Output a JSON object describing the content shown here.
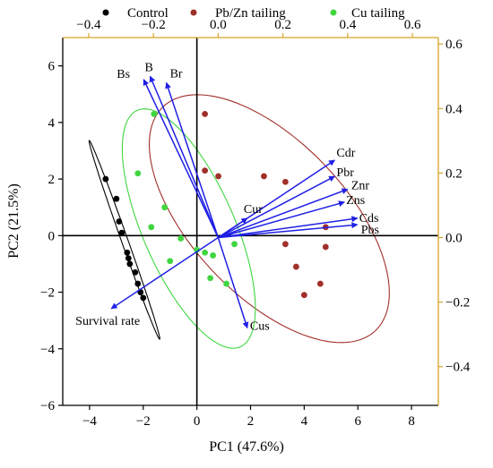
{
  "chart_data": {
    "type": "scatter",
    "subtype": "pca-biplot",
    "title": "",
    "xlabel": "PC1 (47.6%)",
    "ylabel": "PC2 (21.5%)",
    "xlim": [
      -5,
      9
    ],
    "ylim": [
      -6,
      7
    ],
    "x_ticks": [
      -4,
      -2,
      0,
      2,
      4,
      6,
      8
    ],
    "y_ticks": [
      -6,
      -4,
      -2,
      0,
      2,
      4,
      6
    ],
    "loading_xlim": [
      -0.48,
      0.68
    ],
    "loading_ylim": [
      -0.52,
      0.62
    ],
    "top_ticks": [
      -0.4,
      -0.2,
      0.0,
      0.2,
      0.4,
      0.6
    ],
    "right_ticks": [
      -0.4,
      -0.2,
      0.0,
      0.2,
      0.4,
      0.6
    ],
    "top_tick_labels": [
      "−0.4",
      "−0.2",
      "0.0",
      "0.2",
      "0.4",
      "0.6"
    ],
    "right_tick_labels": [
      "−0.4",
      "−0.2",
      "0.0",
      "0.2",
      "0.4",
      "0.6"
    ],
    "x_tick_labels": [
      "−4",
      "−2",
      "0",
      "2",
      "4",
      "6",
      "8"
    ],
    "y_tick_labels": [
      "−6",
      "−4",
      "−2",
      "0",
      "2",
      "4",
      "6"
    ],
    "legend_position": "top",
    "grid": false,
    "axis_color_secondary": "#d9a528",
    "series": [
      {
        "name": "Control",
        "color": "#000000",
        "points": [
          {
            "x": -3.4,
            "y": 2.0
          },
          {
            "x": -3.0,
            "y": 1.3
          },
          {
            "x": -2.9,
            "y": 0.5
          },
          {
            "x": -2.8,
            "y": 0.1
          },
          {
            "x": -2.6,
            "y": -0.6
          },
          {
            "x": -2.55,
            "y": -0.8
          },
          {
            "x": -2.5,
            "y": -1.0
          },
          {
            "x": -2.3,
            "y": -1.3
          },
          {
            "x": -2.2,
            "y": -1.7
          },
          {
            "x": -2.1,
            "y": -2.0
          },
          {
            "x": -2.0,
            "y": -2.2
          }
        ]
      },
      {
        "name": "Pb/Zn tailing",
        "color": "#a0302a",
        "points": [
          {
            "x": 0.3,
            "y": 4.3
          },
          {
            "x": 0.3,
            "y": 2.3
          },
          {
            "x": 0.8,
            "y": 2.1
          },
          {
            "x": 2.5,
            "y": 2.1
          },
          {
            "x": 3.3,
            "y": 1.9
          },
          {
            "x": 4.8,
            "y": 0.3
          },
          {
            "x": 4.8,
            "y": -0.4
          },
          {
            "x": 3.3,
            "y": -0.3
          },
          {
            "x": 3.7,
            "y": -1.1
          },
          {
            "x": 4.0,
            "y": -2.1
          },
          {
            "x": 4.6,
            "y": -1.7
          }
        ]
      },
      {
        "name": "Cu tailing",
        "color": "#3fd63f",
        "points": [
          {
            "x": -1.6,
            "y": 4.3
          },
          {
            "x": -2.2,
            "y": 2.2
          },
          {
            "x": -1.2,
            "y": 1.0
          },
          {
            "x": -1.7,
            "y": 0.3
          },
          {
            "x": -0.6,
            "y": -0.1
          },
          {
            "x": -1.0,
            "y": -0.9
          },
          {
            "x": 0.0,
            "y": -0.5
          },
          {
            "x": 0.3,
            "y": -0.6
          },
          {
            "x": 0.6,
            "y": -0.7
          },
          {
            "x": 0.5,
            "y": -1.5
          },
          {
            "x": 1.1,
            "y": -1.7
          },
          {
            "x": 1.4,
            "y": -0.3
          }
        ]
      }
    ],
    "loadings": [
      {
        "name": "Bs",
        "x": -0.23,
        "y": 0.49
      },
      {
        "name": "B",
        "x": -0.21,
        "y": 0.5
      },
      {
        "name": "Br",
        "x": -0.16,
        "y": 0.48
      },
      {
        "name": "Cdr",
        "x": 0.36,
        "y": 0.24
      },
      {
        "name": "Pbr",
        "x": 0.36,
        "y": 0.19
      },
      {
        "name": "Znr",
        "x": 0.4,
        "y": 0.15
      },
      {
        "name": "Zns",
        "x": 0.39,
        "y": 0.11
      },
      {
        "name": "Cds",
        "x": 0.43,
        "y": 0.06
      },
      {
        "name": "Pbs",
        "x": 0.43,
        "y": 0.04
      },
      {
        "name": "Cur",
        "x": 0.09,
        "y": 0.06
      },
      {
        "name": "Cus",
        "x": 0.09,
        "y": -0.28
      },
      {
        "name": "Survival rate",
        "x": -0.33,
        "y": -0.22
      }
    ],
    "ellipses": [
      {
        "group": "Control",
        "color": "#000000",
        "center": [
          -2.7,
          -0.15
        ],
        "semi_axes": [
          3.75,
          0.12
        ],
        "angle_deg": 110.5
      },
      {
        "group": "Pb/Zn tailing",
        "color": "#a0302a",
        "center": [
          2.7,
          0.6
        ],
        "semi_axes": [
          5.6,
          2.8
        ],
        "angle_deg": 136
      },
      {
        "group": "Cu tailing",
        "color": "#3fd63f",
        "center": [
          -0.3,
          0.25
        ],
        "semi_axes": [
          4.6,
          1.7
        ],
        "angle_deg": 115
      }
    ]
  }
}
